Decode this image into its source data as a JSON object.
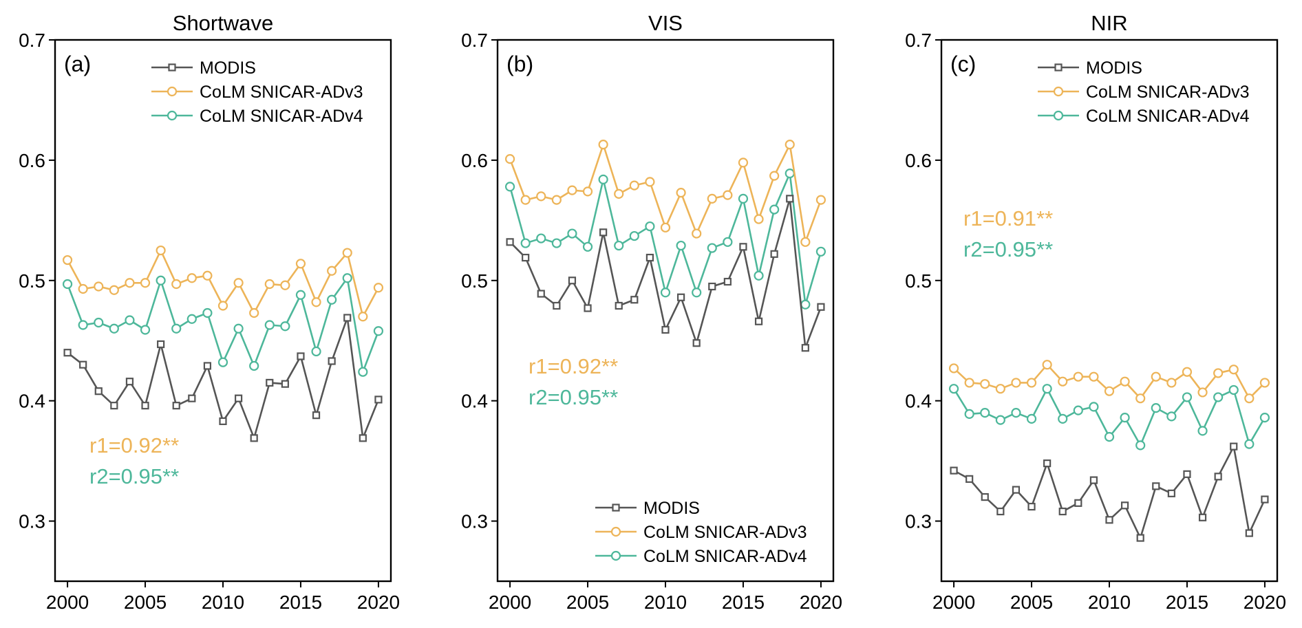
{
  "chart_data": [
    {
      "type": "line",
      "panel": "(a)",
      "title": "Shortwave",
      "xlabel": "",
      "ylabel": "",
      "x": [
        2000,
        2001,
        2002,
        2003,
        2004,
        2005,
        2006,
        2007,
        2008,
        2009,
        2010,
        2011,
        2012,
        2013,
        2014,
        2015,
        2016,
        2017,
        2018,
        2019,
        2020
      ],
      "xlim": [
        1999.2,
        2020.8
      ],
      "ylim": [
        0.25,
        0.7
      ],
      "xticks": [
        "2000",
        "2005",
        "2010",
        "2015",
        "2020"
      ],
      "yticks": [
        "0.3",
        "0.4",
        "0.5",
        "0.6",
        "0.7"
      ],
      "legend_position": "top",
      "series": [
        {
          "name": "MODIS",
          "marker": "square",
          "color": "#555555",
          "values": [
            0.44,
            0.43,
            0.408,
            0.396,
            0.416,
            0.396,
            0.447,
            0.396,
            0.402,
            0.429,
            0.383,
            0.402,
            0.369,
            0.415,
            0.414,
            0.437,
            0.388,
            0.433,
            0.469,
            0.369,
            0.401
          ]
        },
        {
          "name": "CoLM SNICAR-ADv3",
          "marker": "circle",
          "color": "#EDB458",
          "values": [
            0.517,
            0.493,
            0.495,
            0.492,
            0.498,
            0.498,
            0.525,
            0.497,
            0.502,
            0.504,
            0.479,
            0.498,
            0.473,
            0.497,
            0.496,
            0.514,
            0.482,
            0.508,
            0.523,
            0.47,
            0.494
          ]
        },
        {
          "name": "CoLM SNICAR-ADv4",
          "marker": "circle",
          "color": "#4DB79A",
          "values": [
            0.497,
            0.463,
            0.465,
            0.46,
            0.467,
            0.459,
            0.5,
            0.46,
            0.468,
            0.473,
            0.432,
            0.46,
            0.429,
            0.463,
            0.462,
            0.488,
            0.441,
            0.484,
            0.502,
            0.424,
            0.458
          ]
        }
      ],
      "annotations": [
        {
          "text": "r1=0.92**",
          "color": "#EDB458"
        },
        {
          "text": "r2=0.95**",
          "color": "#4DB79A"
        }
      ]
    },
    {
      "type": "line",
      "panel": "(b)",
      "title": "VIS",
      "xlabel": "",
      "ylabel": "",
      "x": [
        2000,
        2001,
        2002,
        2003,
        2004,
        2005,
        2006,
        2007,
        2008,
        2009,
        2010,
        2011,
        2012,
        2013,
        2014,
        2015,
        2016,
        2017,
        2018,
        2019,
        2020
      ],
      "xlim": [
        1999.2,
        2020.8
      ],
      "ylim": [
        0.25,
        0.7
      ],
      "xticks": [
        "2000",
        "2005",
        "2010",
        "2015",
        "2020"
      ],
      "yticks": [
        "0.3",
        "0.4",
        "0.5",
        "0.6",
        "0.7"
      ],
      "legend_position": "bottom",
      "series": [
        {
          "name": "MODIS",
          "marker": "square",
          "color": "#555555",
          "values": [
            0.532,
            0.519,
            0.489,
            0.479,
            0.5,
            0.477,
            0.54,
            0.479,
            0.484,
            0.519,
            0.459,
            0.486,
            0.448,
            0.495,
            0.499,
            0.528,
            0.466,
            0.522,
            0.568,
            0.444,
            0.478
          ]
        },
        {
          "name": "CoLM SNICAR-ADv3",
          "marker": "circle",
          "color": "#EDB458",
          "values": [
            0.601,
            0.567,
            0.57,
            0.567,
            0.575,
            0.574,
            0.613,
            0.572,
            0.579,
            0.582,
            0.544,
            0.573,
            0.539,
            0.568,
            0.571,
            0.598,
            0.551,
            0.587,
            0.613,
            0.532,
            0.567
          ]
        },
        {
          "name": "CoLM SNICAR-ADv4",
          "marker": "circle",
          "color": "#4DB79A",
          "values": [
            0.578,
            0.531,
            0.535,
            0.531,
            0.539,
            0.528,
            0.584,
            0.529,
            0.537,
            0.545,
            0.49,
            0.529,
            0.49,
            0.527,
            0.532,
            0.568,
            0.504,
            0.559,
            0.589,
            0.48,
            0.524
          ]
        }
      ],
      "annotations": [
        {
          "text": "r1=0.92**",
          "color": "#EDB458"
        },
        {
          "text": "r2=0.95**",
          "color": "#4DB79A"
        }
      ]
    },
    {
      "type": "line",
      "panel": "(c)",
      "title": "NIR",
      "xlabel": "",
      "ylabel": "",
      "x": [
        2000,
        2001,
        2002,
        2003,
        2004,
        2005,
        2006,
        2007,
        2008,
        2009,
        2010,
        2011,
        2012,
        2013,
        2014,
        2015,
        2016,
        2017,
        2018,
        2019,
        2020
      ],
      "xlim": [
        1999.2,
        2020.8
      ],
      "ylim": [
        0.25,
        0.7
      ],
      "xticks": [
        "2000",
        "2005",
        "2010",
        "2015",
        "2020"
      ],
      "yticks": [
        "0.3",
        "0.4",
        "0.5",
        "0.6",
        "0.7"
      ],
      "legend_position": "top",
      "series": [
        {
          "name": "MODIS",
          "marker": "square",
          "color": "#555555",
          "values": [
            0.342,
            0.335,
            0.32,
            0.308,
            0.326,
            0.312,
            0.348,
            0.308,
            0.315,
            0.334,
            0.301,
            0.313,
            0.286,
            0.329,
            0.323,
            0.339,
            0.303,
            0.337,
            0.362,
            0.29,
            0.318
          ]
        },
        {
          "name": "CoLM SNICAR-ADv3",
          "marker": "circle",
          "color": "#EDB458",
          "values": [
            0.427,
            0.415,
            0.414,
            0.41,
            0.415,
            0.415,
            0.43,
            0.416,
            0.42,
            0.42,
            0.408,
            0.416,
            0.402,
            0.42,
            0.415,
            0.424,
            0.407,
            0.423,
            0.426,
            0.402,
            0.415
          ]
        },
        {
          "name": "CoLM SNICAR-ADv4",
          "marker": "circle",
          "color": "#4DB79A",
          "values": [
            0.41,
            0.389,
            0.39,
            0.384,
            0.39,
            0.385,
            0.41,
            0.385,
            0.392,
            0.395,
            0.37,
            0.386,
            0.363,
            0.394,
            0.387,
            0.403,
            0.375,
            0.403,
            0.409,
            0.364,
            0.386
          ]
        }
      ],
      "annotations": [
        {
          "text": "r1=0.91**",
          "color": "#EDB458"
        },
        {
          "text": "r2=0.95**",
          "color": "#4DB79A"
        }
      ]
    }
  ]
}
